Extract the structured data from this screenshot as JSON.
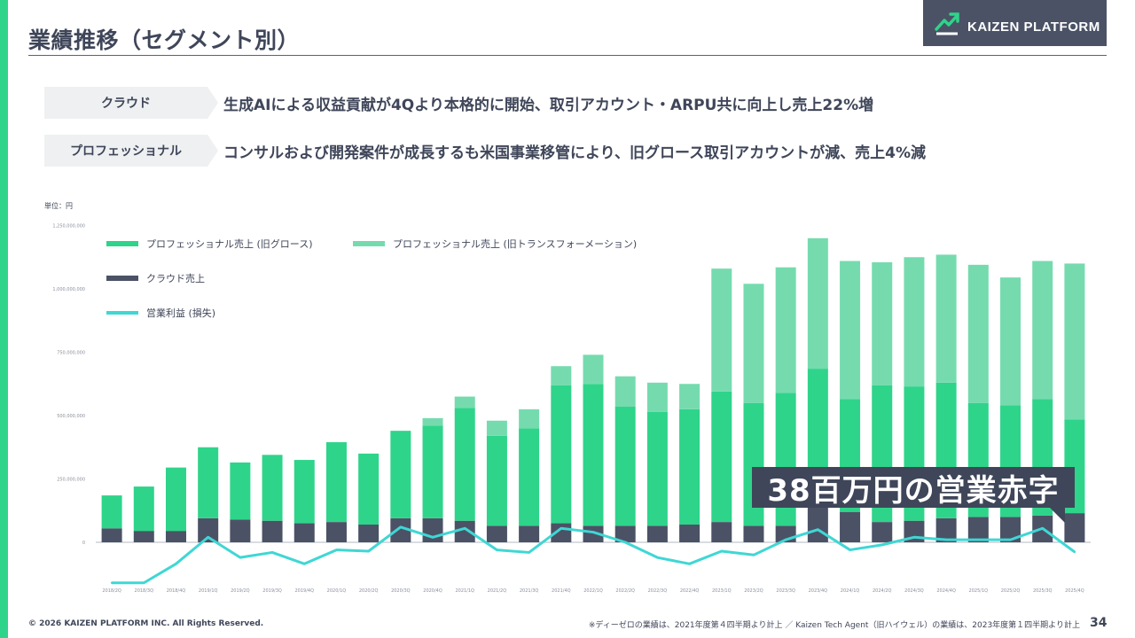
{
  "header": {
    "title": "業績推移（セグメント別）",
    "logo_text": "KAIZEN PLATFORM"
  },
  "colors": {
    "accent": "#2ed48a",
    "growth": "#2ed48a",
    "transformation": "#75dbae",
    "cloud": "#4b5266",
    "profit_line": "#3fd7d4",
    "dark": "#3f4659",
    "logo_bg": "#4b5266"
  },
  "segments": [
    {
      "tag": "クラウド",
      "text": "生成AIによる収益貢献が4Qより本格的に開始、取引アカウント・ARPU共に向上し売上22%増"
    },
    {
      "tag": "プロフェッショナル",
      "text": "コンサルおよび開発案件が成長するも米国事業移管により、旧グロース取引アカウントが減、売上4%減"
    }
  ],
  "unit_label": "単位：円",
  "callout": "38百万円の営業赤字",
  "footer": {
    "copyright": "© 2026 KAIZEN PLATFORM INC. All Rights Reserved.",
    "note": "※ディーゼロの業績は、2021年度第４四半期より計上 ／ Kaizen Tech Agent（旧ハイウェル）の業績は、2023年度第１四半期より計上",
    "page": "34"
  },
  "chart_data": {
    "type": "bar",
    "stacked": true,
    "title": "",
    "ylim": [
      -250000000,
      1250000000
    ],
    "yticks": [
      0,
      250000000,
      500000000,
      750000000,
      1000000000,
      1250000000
    ],
    "ytick_labels": [
      "0",
      "250,000,000",
      "500,000,000",
      "750,000,000",
      "1,000,000,000",
      "1,250,000,000"
    ],
    "categories": [
      "2018/2Q",
      "2018/3Q",
      "2018/4Q",
      "2019/1Q",
      "2019/2Q",
      "2019/3Q",
      "2019/4Q",
      "2020/1Q",
      "2020/2Q",
      "2020/3Q",
      "2020/4Q",
      "2021/1Q",
      "2021/2Q",
      "2021/3Q",
      "2021/4Q",
      "2022/1Q",
      "2022/2Q",
      "2022/3Q",
      "2022/4Q",
      "2023/1Q",
      "2023/2Q",
      "2023/3Q",
      "2023/4Q",
      "2024/1Q",
      "2024/2Q",
      "2024/3Q",
      "2024/4Q",
      "2025/1Q",
      "2025/2Q",
      "2025/3Q",
      "2025/4Q"
    ],
    "series": [
      {
        "name": "クラウド売上",
        "kind": "bar",
        "values": [
          55000000,
          45000000,
          45000000,
          95000000,
          90000000,
          85000000,
          75000000,
          80000000,
          70000000,
          95000000,
          95000000,
          85000000,
          65000000,
          65000000,
          75000000,
          65000000,
          65000000,
          65000000,
          70000000,
          80000000,
          65000000,
          65000000,
          140000000,
          120000000,
          80000000,
          85000000,
          95000000,
          100000000,
          100000000,
          105000000,
          115000000
        ]
      },
      {
        "name": "プロフェッショナル売上 (旧グロース)",
        "kind": "bar",
        "values": [
          130000000,
          175000000,
          250000000,
          280000000,
          225000000,
          260000000,
          250000000,
          315000000,
          280000000,
          345000000,
          365000000,
          445000000,
          355000000,
          385000000,
          545000000,
          560000000,
          470000000,
          450000000,
          455000000,
          515000000,
          485000000,
          525000000,
          545000000,
          445000000,
          540000000,
          530000000,
          535000000,
          450000000,
          440000000,
          460000000,
          370000000
        ]
      },
      {
        "name": "プロフェッショナル売上 (旧トランスフォーメーション)",
        "kind": "bar",
        "values": [
          0,
          0,
          0,
          0,
          0,
          0,
          0,
          0,
          0,
          0,
          30000000,
          45000000,
          60000000,
          75000000,
          75000000,
          115000000,
          120000000,
          115000000,
          100000000,
          485000000,
          470000000,
          495000000,
          515000000,
          545000000,
          485000000,
          510000000,
          505000000,
          545000000,
          505000000,
          545000000,
          615000000
        ]
      },
      {
        "name": "営業利益 (損失)",
        "kind": "line",
        "values": [
          -160000000,
          -160000000,
          -85000000,
          20000000,
          -60000000,
          -40000000,
          -85000000,
          -30000000,
          -35000000,
          60000000,
          20000000,
          55000000,
          -30000000,
          -40000000,
          55000000,
          40000000,
          0,
          -60000000,
          -85000000,
          -35000000,
          -50000000,
          10000000,
          50000000,
          -30000000,
          -10000000,
          20000000,
          10000000,
          10000000,
          10000000,
          55000000,
          -38000000
        ]
      }
    ],
    "legend": [
      {
        "label": "プロフェッショナル売上 (旧グロース)",
        "color_key": "growth"
      },
      {
        "label": "プロフェッショナル売上 (旧トランスフォーメーション)",
        "color_key": "transformation"
      },
      {
        "label": "クラウド売上",
        "color_key": "cloud"
      },
      {
        "label": "営業利益 (損失)",
        "color_key": "profit_line"
      }
    ],
    "legend_position": "top-left"
  }
}
